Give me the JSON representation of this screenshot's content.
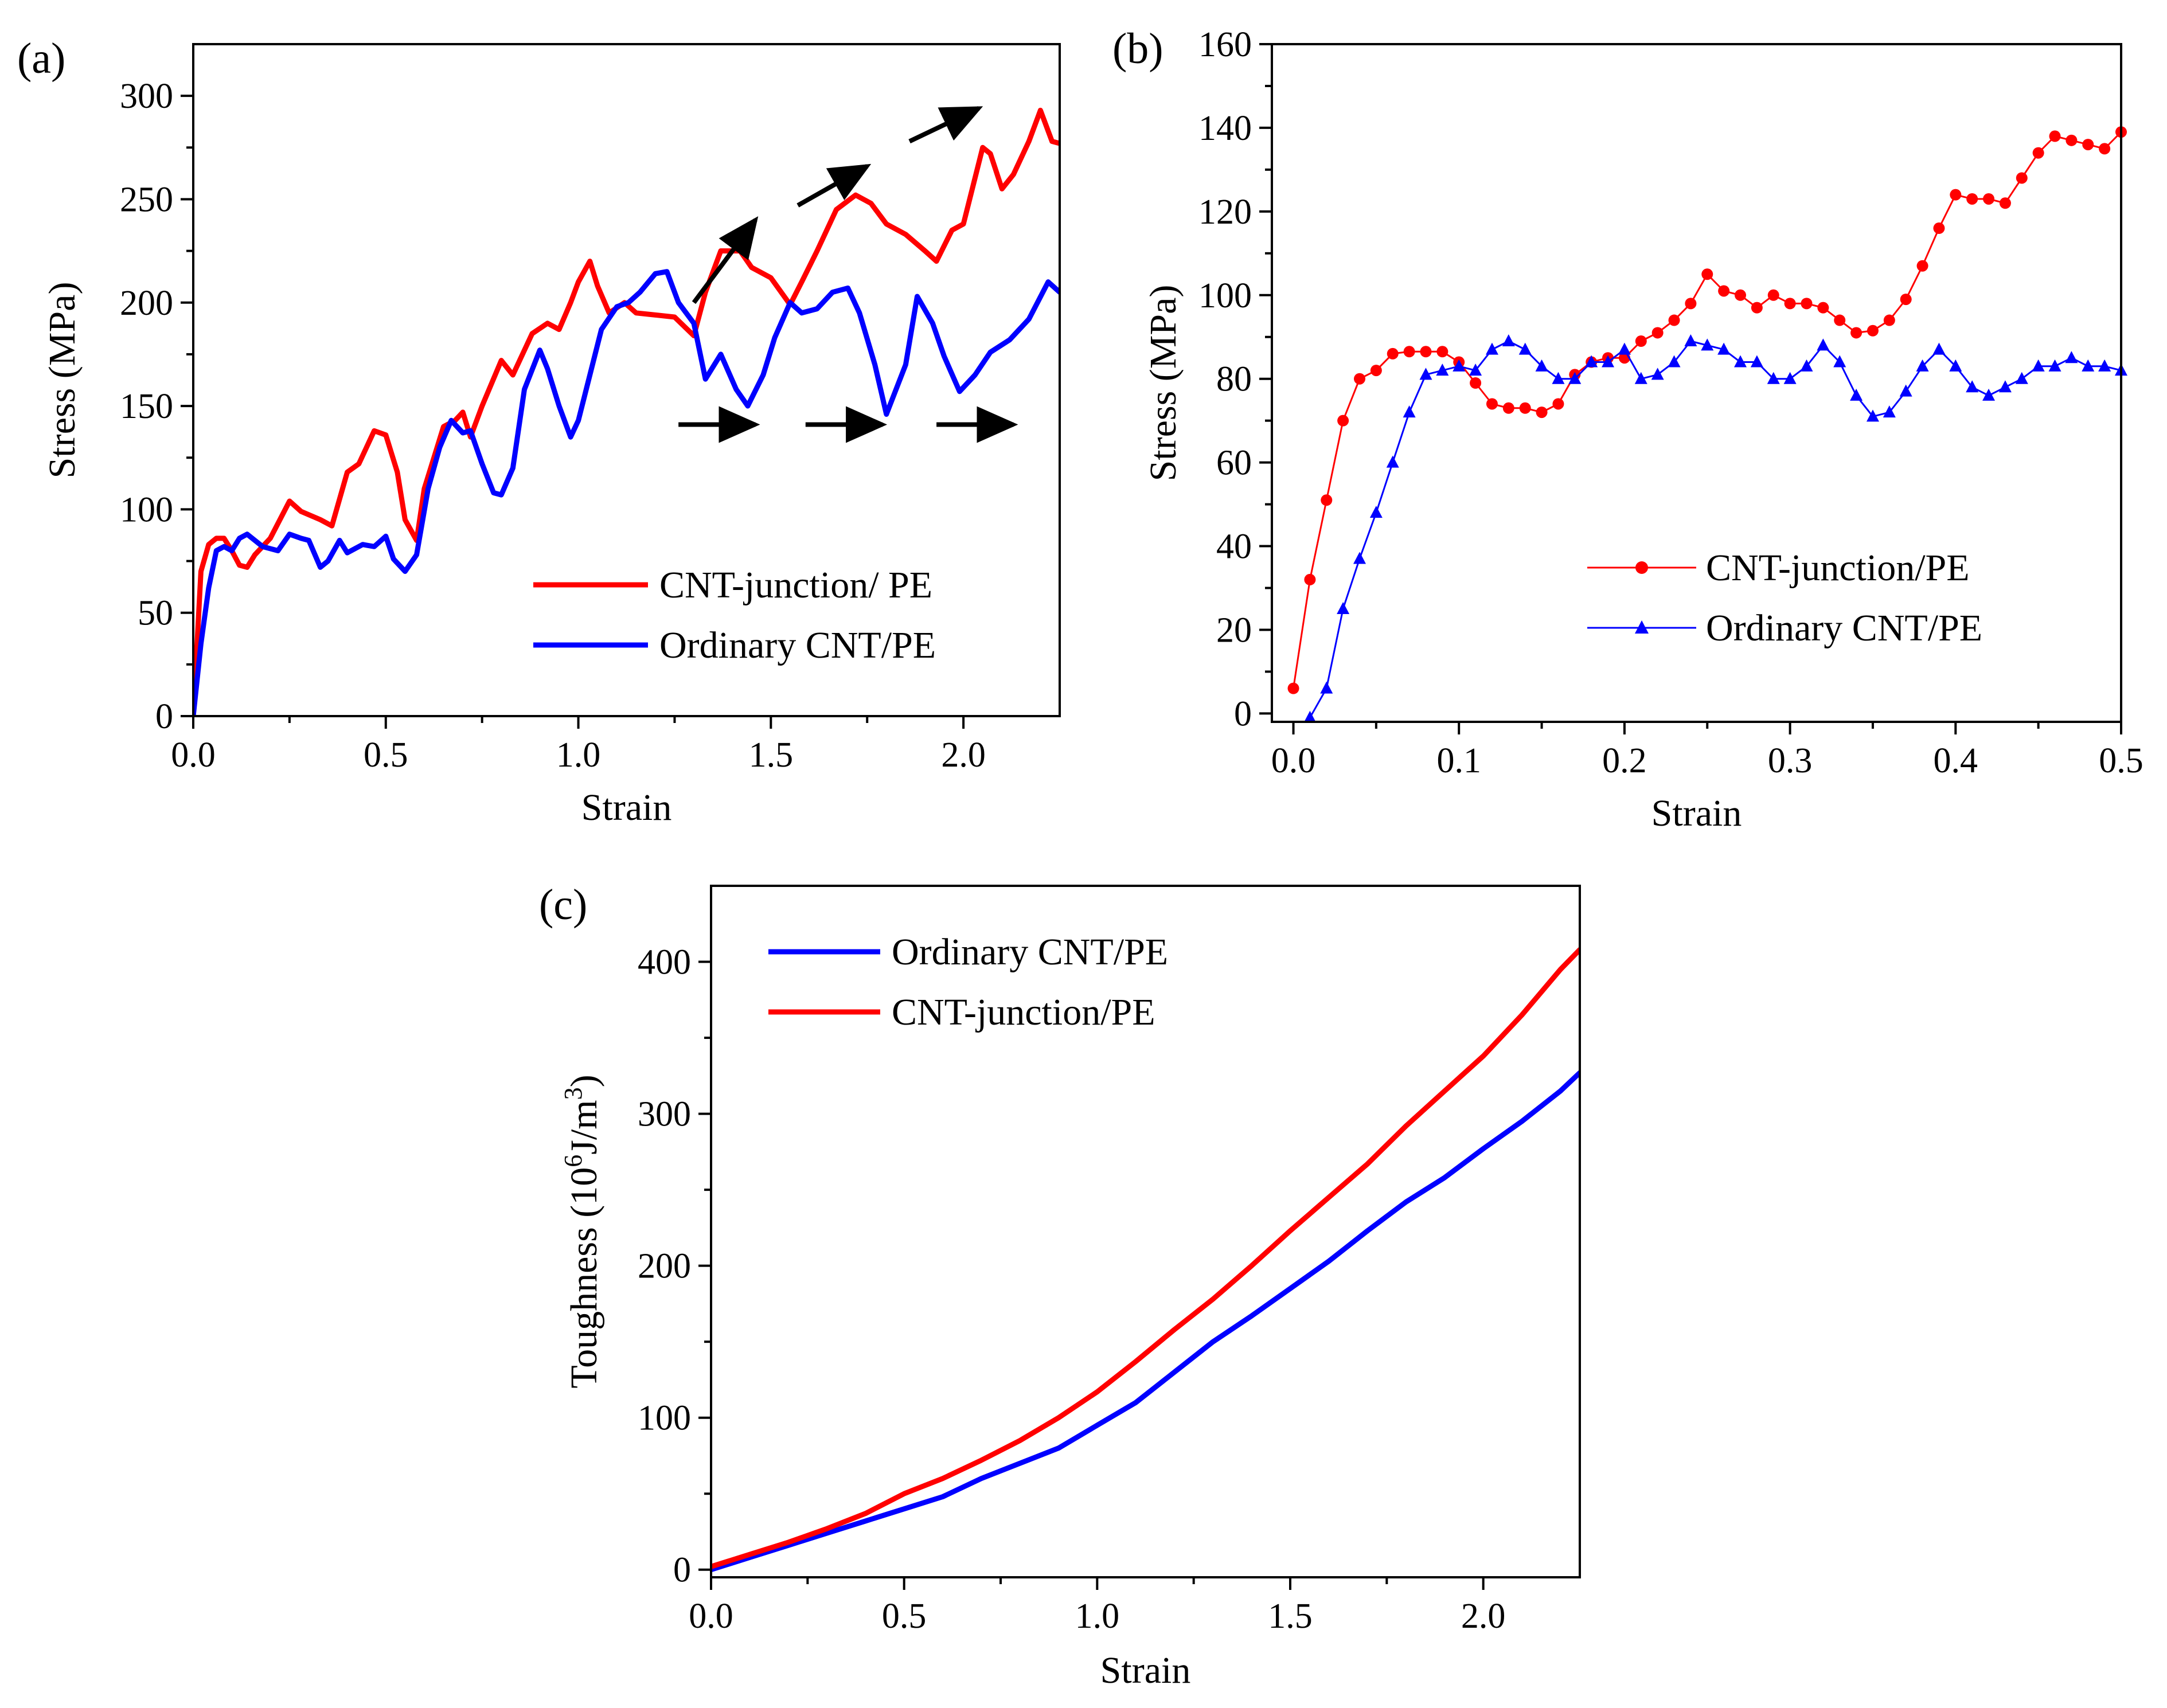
{
  "colors": {
    "junction": "#ff0000",
    "ordinary": "#0000ff",
    "axis": "#000000",
    "arrow": "#000000"
  },
  "chart_data": [
    {
      "panel": "(a)",
      "type": "line",
      "xlabel": "Strain",
      "ylabel": "Stress (MPa)",
      "xlim": [
        0,
        2.25
      ],
      "ylim": [
        0,
        325
      ],
      "xticks": [
        0,
        0.5,
        1,
        1.5,
        2
      ],
      "xtick_labels": [
        "0.0",
        "0.5",
        "1.0",
        "1.5",
        "2.0"
      ],
      "yticks": [
        0,
        50,
        100,
        150,
        200,
        250,
        300
      ],
      "ytick_labels": [
        "0",
        "50",
        "100",
        "150",
        "200",
        "250",
        "300"
      ],
      "legend_position": "bottom-right",
      "legend": [
        "CNT-junction/ PE",
        "Ordinary CNT/PE"
      ],
      "annotations": "black arrows: three rising (upper-right) above peaks, three horizontal below valleys",
      "arrows_up": [
        [
          1.3,
          200,
          1.46,
          240
        ],
        [
          1.57,
          247,
          1.75,
          266
        ],
        [
          1.86,
          278,
          2.04,
          294
        ]
      ],
      "arrows_flat": [
        [
          1.26,
          141,
          1.46,
          141
        ],
        [
          1.59,
          141,
          1.79,
          141
        ],
        [
          1.93,
          141,
          2.13,
          141
        ]
      ],
      "series": [
        {
          "name": "CNT-junction/ PE",
          "x": [
            0,
            0.02,
            0.04,
            0.06,
            0.08,
            0.1,
            0.12,
            0.14,
            0.16,
            0.2,
            0.25,
            0.28,
            0.33,
            0.36,
            0.4,
            0.43,
            0.47,
            0.5,
            0.53,
            0.55,
            0.58,
            0.6,
            0.65,
            0.68,
            0.7,
            0.72,
            0.75,
            0.8,
            0.83,
            0.88,
            0.92,
            0.95,
            0.98,
            1.0,
            1.03,
            1.05,
            1.08,
            1.12,
            1.15,
            1.2,
            1.25,
            1.3,
            1.33,
            1.37,
            1.42,
            1.45,
            1.5,
            1.55,
            1.58,
            1.62,
            1.67,
            1.72,
            1.76,
            1.8,
            1.85,
            1.9,
            1.93,
            1.97,
            2.0,
            2.05,
            2.07,
            2.1,
            2.13,
            2.17,
            2.2,
            2.23,
            2.25
          ],
          "values": [
            0,
            70,
            83,
            86,
            86,
            80,
            73,
            72,
            78,
            86,
            104,
            99,
            95,
            92,
            118,
            122,
            138,
            136,
            118,
            95,
            85,
            110,
            140,
            143,
            147,
            135,
            150,
            172,
            165,
            185,
            190,
            187,
            200,
            210,
            220,
            208,
            195,
            200,
            195,
            194,
            193,
            184,
            205,
            225,
            225,
            217,
            212,
            199,
            210,
            225,
            245,
            252,
            248,
            238,
            233,
            225,
            220,
            235,
            238,
            275,
            272,
            255,
            262,
            278,
            293,
            278,
            277
          ]
        },
        {
          "name": "Ordinary CNT/PE",
          "x": [
            0,
            0.02,
            0.04,
            0.06,
            0.08,
            0.1,
            0.12,
            0.14,
            0.18,
            0.22,
            0.25,
            0.28,
            0.3,
            0.33,
            0.35,
            0.38,
            0.4,
            0.44,
            0.47,
            0.5,
            0.52,
            0.55,
            0.58,
            0.61,
            0.64,
            0.67,
            0.7,
            0.72,
            0.75,
            0.78,
            0.8,
            0.83,
            0.86,
            0.9,
            0.92,
            0.95,
            0.98,
            1.0,
            1.03,
            1.06,
            1.1,
            1.13,
            1.16,
            1.2,
            1.23,
            1.26,
            1.3,
            1.33,
            1.37,
            1.41,
            1.44,
            1.48,
            1.51,
            1.55,
            1.58,
            1.62,
            1.66,
            1.7,
            1.73,
            1.77,
            1.8,
            1.85,
            1.88,
            1.92,
            1.95,
            1.99,
            2.03,
            2.07,
            2.12,
            2.17,
            2.22,
            2.25
          ],
          "values": [
            0,
            35,
            62,
            80,
            82,
            80,
            86,
            88,
            82,
            80,
            88,
            86,
            85,
            72,
            75,
            85,
            79,
            83,
            82,
            87,
            76,
            70,
            78,
            110,
            130,
            143,
            137,
            138,
            122,
            108,
            107,
            120,
            158,
            177,
            168,
            150,
            135,
            143,
            165,
            187,
            198,
            200,
            205,
            214,
            215,
            200,
            190,
            163,
            175,
            158,
            150,
            165,
            183,
            200,
            195,
            197,
            205,
            207,
            195,
            170,
            146,
            170,
            203,
            190,
            174,
            157,
            165,
            176,
            182,
            192,
            210,
            205
          ]
        }
      ]
    },
    {
      "panel": "(b)",
      "type": "line",
      "xlabel": "Strain",
      "ylabel": "Stress (MPa)",
      "xlim": [
        -0.013,
        0.5
      ],
      "ylim": [
        -2,
        160
      ],
      "xticks": [
        0,
        0.1,
        0.2,
        0.3,
        0.4,
        0.5
      ],
      "xtick_labels": [
        "0.0",
        "0.1",
        "0.2",
        "0.3",
        "0.4",
        "0.5"
      ],
      "yticks": [
        0,
        20,
        40,
        60,
        80,
        100,
        120,
        140,
        160
      ],
      "ytick_labels": [
        "0",
        "20",
        "40",
        "60",
        "80",
        "100",
        "120",
        "140",
        "160"
      ],
      "legend_position": "lower-right",
      "legend": [
        "CNT-junction/PE",
        "Ordinary CNT/PE"
      ],
      "series": [
        {
          "name": "CNT-junction/PE",
          "marker": "circle",
          "x": [
            0,
            0.01,
            0.02,
            0.03,
            0.04,
            0.05,
            0.06,
            0.07,
            0.08,
            0.09,
            0.1,
            0.11,
            0.12,
            0.13,
            0.14,
            0.15,
            0.16,
            0.17,
            0.18,
            0.19,
            0.2,
            0.21,
            0.22,
            0.23,
            0.24,
            0.25,
            0.26,
            0.27,
            0.28,
            0.29,
            0.3,
            0.31,
            0.32,
            0.33,
            0.34,
            0.35,
            0.36,
            0.37,
            0.38,
            0.39,
            0.4,
            0.41,
            0.42,
            0.43,
            0.44,
            0.45,
            0.46,
            0.47,
            0.48,
            0.49,
            0.5
          ],
          "values": [
            6,
            32,
            51,
            70,
            80,
            82,
            86,
            86.5,
            86.5,
            86.5,
            84,
            79,
            74,
            73,
            73,
            72,
            74,
            81,
            84,
            85,
            85,
            89,
            91,
            94,
            98,
            105,
            101,
            100,
            97,
            100,
            98,
            98,
            97,
            94,
            91,
            91.5,
            94,
            99,
            107,
            116,
            124,
            123,
            123,
            122,
            128,
            134,
            138,
            137,
            136,
            135,
            139
          ]
        },
        {
          "name": "Ordinary CNT/PE",
          "marker": "triangle",
          "x": [
            0.01,
            0.02,
            0.03,
            0.04,
            0.05,
            0.06,
            0.07,
            0.08,
            0.09,
            0.1,
            0.11,
            0.12,
            0.13,
            0.14,
            0.15,
            0.16,
            0.17,
            0.18,
            0.19,
            0.2,
            0.21,
            0.22,
            0.23,
            0.24,
            0.25,
            0.26,
            0.27,
            0.28,
            0.29,
            0.3,
            0.31,
            0.32,
            0.33,
            0.34,
            0.35,
            0.36,
            0.37,
            0.38,
            0.39,
            0.4,
            0.41,
            0.42,
            0.43,
            0.44,
            0.45,
            0.46,
            0.47,
            0.48,
            0.49,
            0.5
          ],
          "values": [
            -1,
            6,
            25,
            37,
            48,
            60,
            72,
            81,
            82,
            83,
            82,
            87,
            89,
            87,
            83,
            80,
            80,
            84,
            84,
            87,
            80,
            81,
            84,
            89,
            88,
            87,
            84,
            84,
            80,
            80,
            83,
            88,
            84,
            76,
            71,
            72,
            77,
            83,
            87,
            83,
            78,
            76,
            78,
            80,
            83,
            83,
            85,
            83,
            83,
            82
          ]
        }
      ]
    },
    {
      "panel": "(c)",
      "type": "line",
      "xlabel": "Strain",
      "ylabel": "Toughness (10^6J/m^3)",
      "ylabel_parts": [
        "Toughness (10",
        "6",
        "J/m",
        "3",
        ")"
      ],
      "xlim": [
        0,
        2.25
      ],
      "ylim": [
        -5,
        450
      ],
      "xticks": [
        0,
        0.5,
        1,
        1.5,
        2
      ],
      "xtick_labels": [
        "0.0",
        "0.5",
        "1.0",
        "1.5",
        "2.0"
      ],
      "yticks": [
        0,
        100,
        200,
        300,
        400
      ],
      "ytick_labels": [
        "0",
        "100",
        "200",
        "300",
        "400"
      ],
      "legend_position": "top-left",
      "legend": [
        "Ordinary CNT/PE",
        "CNT-junction/PE"
      ],
      "series": [
        {
          "name": "Ordinary CNT/PE",
          "x": [
            0,
            0.1,
            0.2,
            0.3,
            0.4,
            0.5,
            0.6,
            0.7,
            0.8,
            0.9,
            1.0,
            1.1,
            1.2,
            1.3,
            1.4,
            1.5,
            1.6,
            1.7,
            1.8,
            1.9,
            2.0,
            2.1,
            2.2,
            2.25
          ],
          "values": [
            0,
            8,
            16,
            24,
            32,
            40,
            48,
            60,
            70,
            80,
            95,
            110,
            130,
            150,
            167,
            185,
            203,
            223,
            242,
            258,
            277,
            295,
            315,
            327
          ]
        },
        {
          "name": "CNT-junction/PE",
          "x": [
            0,
            0.1,
            0.2,
            0.3,
            0.4,
            0.5,
            0.6,
            0.7,
            0.8,
            0.9,
            1.0,
            1.1,
            1.2,
            1.3,
            1.4,
            1.5,
            1.6,
            1.7,
            1.8,
            1.9,
            2.0,
            2.1,
            2.2,
            2.25
          ],
          "values": [
            2,
            10,
            18,
            27,
            37,
            50,
            60,
            72,
            85,
            100,
            117,
            137,
            158,
            178,
            200,
            223,
            245,
            267,
            292,
            315,
            338,
            365,
            395,
            408
          ]
        }
      ]
    }
  ]
}
